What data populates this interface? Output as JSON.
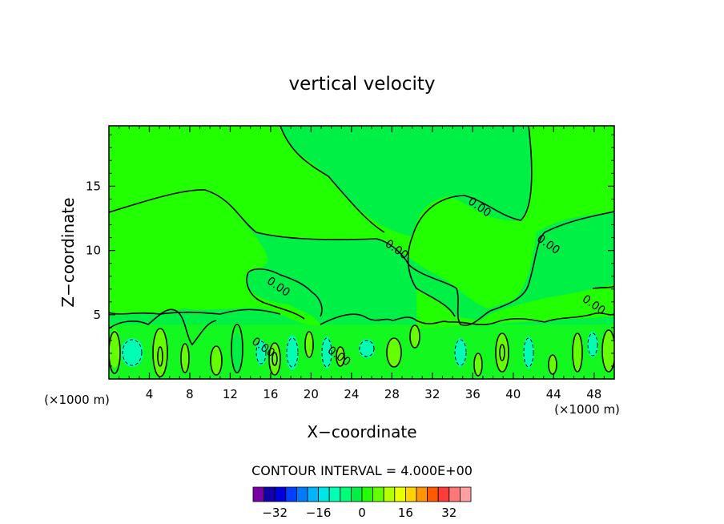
{
  "chart_data": {
    "type": "heatmap",
    "title": "vertical velocity",
    "xlabel": "X−coordinate",
    "ylabel": "Z−coordinate",
    "x_unit": "(×1000 m)",
    "y_unit": "(×1000 m)",
    "xlim": [
      0,
      50
    ],
    "ylim": [
      0,
      19.7
    ],
    "x_ticks": [
      4,
      8,
      12,
      16,
      20,
      24,
      28,
      32,
      36,
      40,
      44,
      48
    ],
    "y_ticks": [
      5,
      10,
      15
    ],
    "contour_interval_label": "CONTOUR INTERVAL = 4.000E+00",
    "contour_interval": 4,
    "contour_labels": [
      {
        "text": "0.00",
        "x": 16.8,
        "z": 7.2
      },
      {
        "text": "0.00",
        "x": 28.5,
        "z": 10.1
      },
      {
        "text": "0.00",
        "x": 36.7,
        "z": 13.4
      },
      {
        "text": "0.00",
        "x": 43.5,
        "z": 10.5
      },
      {
        "text": "0.00",
        "x": 48.0,
        "z": 5.8
      },
      {
        "text": "0.00",
        "x": 15.3,
        "z": 2.5
      },
      {
        "text": "0.00",
        "x": 22.8,
        "z": 1.8
      }
    ],
    "colorbar": {
      "levels": [
        -40,
        -36,
        -32,
        -28,
        -24,
        -20,
        -16,
        -12,
        -8,
        -4,
        0,
        4,
        8,
        12,
        16,
        20,
        24,
        28,
        32,
        36
      ],
      "colors": [
        "#7a00a6",
        "#1400a8",
        "#0000dc",
        "#0040ff",
        "#007aff",
        "#00b4ff",
        "#00e6e6",
        "#00ffb4",
        "#00ff78",
        "#00f046",
        "#22ff00",
        "#64ff00",
        "#b4ff00",
        "#eaff00",
        "#ffd200",
        "#ff9600",
        "#ff5a00",
        "#ff3c3c",
        "#ff7878",
        "#ffa0a0"
      ],
      "tick_labels": [
        "−32",
        "−16",
        "0",
        "16",
        "32"
      ],
      "tick_values": [
        -32,
        -16,
        0,
        16,
        32
      ]
    }
  }
}
